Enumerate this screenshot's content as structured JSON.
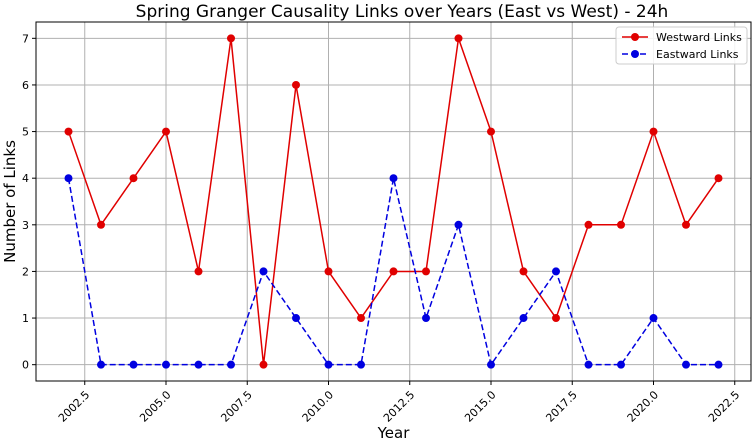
{
  "chart_data": {
    "type": "line",
    "title": "Spring Granger Causality Links over Years (East vs West) - 24h",
    "xlabel": "Year",
    "ylabel": "Number of Links",
    "xlim": [
      2001.0,
      2023.0
    ],
    "ylim": [
      -0.35,
      7.35
    ],
    "xticks": [
      2002.5,
      2005.0,
      2007.5,
      2010.0,
      2012.5,
      2015.0,
      2017.5,
      2020.0,
      2022.5
    ],
    "xtick_labels": [
      "2002.5",
      "2005.0",
      "2007.5",
      "2010.0",
      "2012.5",
      "2015.0",
      "2017.5",
      "2020.0",
      "2022.5"
    ],
    "yticks": [
      0,
      1,
      2,
      3,
      4,
      5,
      6,
      7
    ],
    "ytick_labels": [
      "0",
      "1",
      "2",
      "3",
      "4",
      "5",
      "6",
      "7"
    ],
    "grid": true,
    "legend_position": "top-right",
    "x": [
      2002,
      2003,
      2004,
      2005,
      2006,
      2007,
      2008,
      2009,
      2010,
      2011,
      2012,
      2013,
      2014,
      2015,
      2016,
      2017,
      2018,
      2019,
      2020,
      2021,
      2022
    ],
    "series": [
      {
        "name": "Westward Links",
        "color": "#e00000",
        "line_style": "solid",
        "values": [
          5,
          3,
          4,
          5,
          2,
          7,
          0,
          6,
          2,
          1,
          2,
          2,
          7,
          5,
          2,
          1,
          3,
          3,
          5,
          3,
          4
        ]
      },
      {
        "name": "Eastward Links",
        "color": "#0000e0",
        "line_style": "dashed",
        "values": [
          4,
          0,
          0,
          0,
          0,
          0,
          2,
          1,
          0,
          0,
          4,
          1,
          3,
          0,
          1,
          2,
          0,
          0,
          1,
          0,
          0
        ]
      }
    ]
  }
}
